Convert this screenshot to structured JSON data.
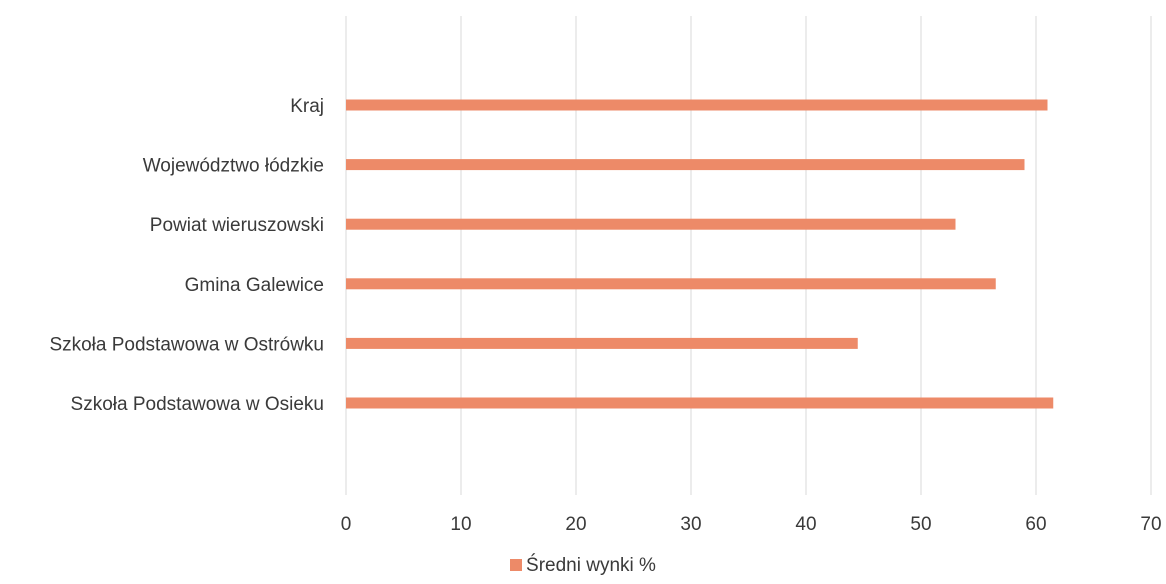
{
  "chart_data": {
    "type": "bar",
    "orientation": "horizontal",
    "categories": [
      "Kraj",
      "Województwo łódzkie",
      "Powiat wieruszowski",
      "Gmina Galewice",
      "Szkoła Podstawowa w Ostrówku",
      "Szkoła Podstawowa w Osieku"
    ],
    "series": [
      {
        "name": "Średni wynki %",
        "values": [
          61,
          59,
          53,
          56.5,
          44.5,
          61.5
        ],
        "color": "#ed8a68"
      }
    ],
    "xlim": [
      0,
      70
    ],
    "xticks": [
      "0",
      "10",
      "20",
      "30",
      "40",
      "50",
      "60",
      "70"
    ],
    "grid": true,
    "legend_position": "bottom"
  }
}
